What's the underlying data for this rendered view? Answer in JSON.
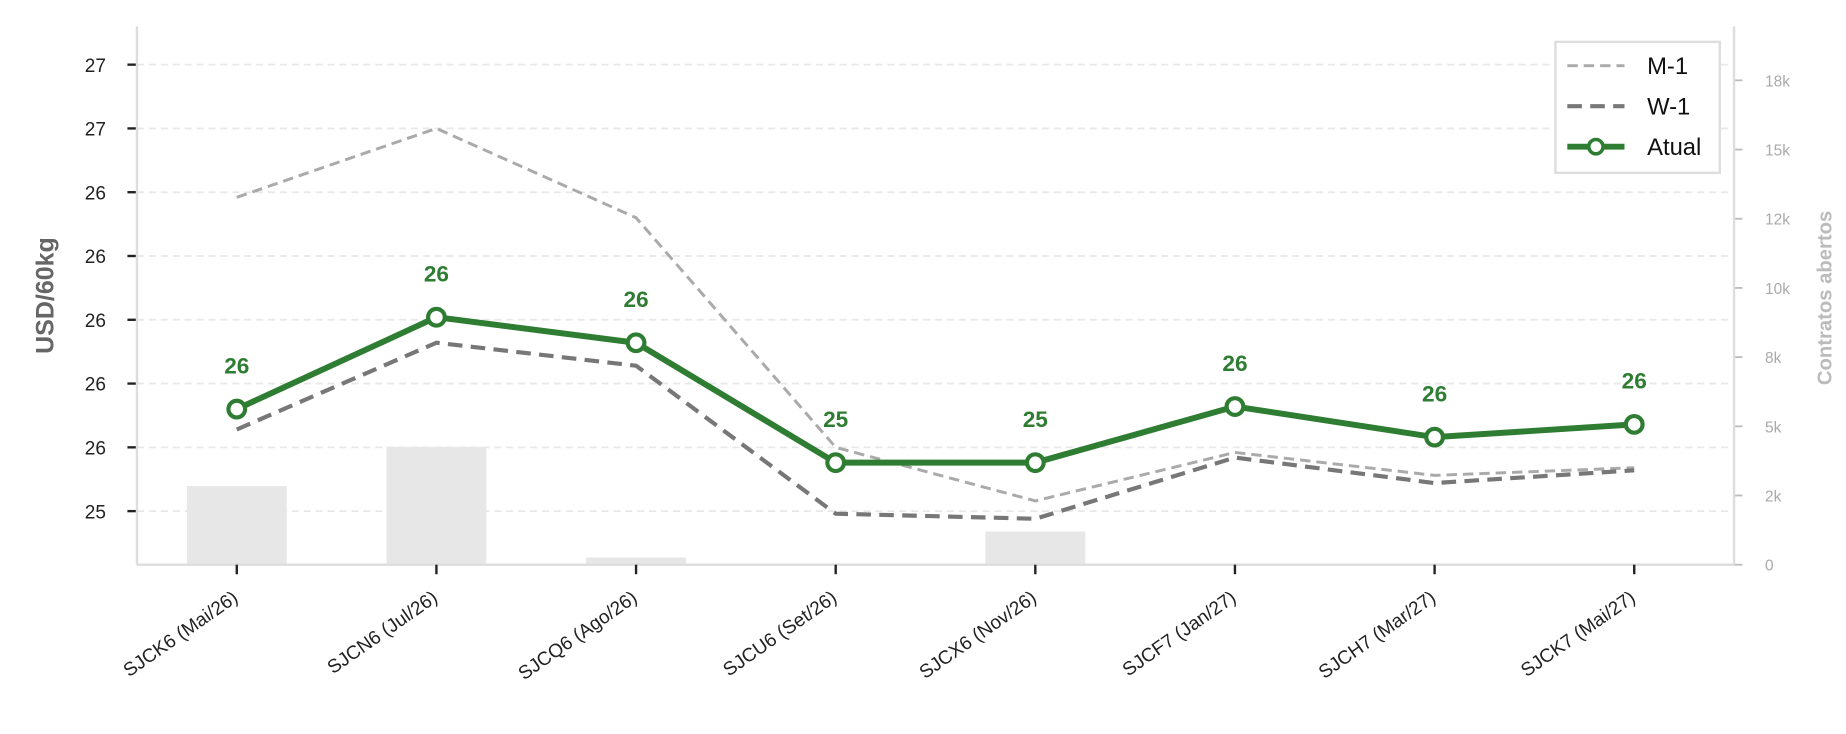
{
  "chart_data": {
    "type": "line",
    "ylabel": "USD/60kg",
    "y2label": "Contratos abertos",
    "categories": [
      "SJCK6 (Mai/26)",
      "SJCN6 (Jul/26)",
      "SJCQ6 (Ago/26)",
      "SJCU6 (Set/26)",
      "SJCX6 (Nov/26)",
      "SJCF7 (Jan/27)",
      "SJCH7 (Mar/27)",
      "SJCK7 (Mai/27)"
    ],
    "ylim": [
      25.04,
      27.15
    ],
    "yticks": [
      {
        "value": 25.25,
        "label": "25"
      },
      {
        "value": 25.5,
        "label": "26"
      },
      {
        "value": 25.75,
        "label": "26"
      },
      {
        "value": 26.0,
        "label": "26"
      },
      {
        "value": 26.25,
        "label": "26"
      },
      {
        "value": 26.5,
        "label": "26"
      },
      {
        "value": 26.75,
        "label": "27"
      },
      {
        "value": 27.0,
        "label": "27"
      }
    ],
    "y2lim": [
      0,
      19450
    ],
    "y2ticks": [
      0,
      {
        "value": 2500,
        "label": "2k"
      },
      {
        "value": 5000,
        "label": "5k"
      },
      {
        "value": 7500,
        "label": "8k"
      },
      {
        "value": 10000,
        "label": "10k"
      },
      {
        "value": 12500,
        "label": "12k"
      },
      {
        "value": 15000,
        "label": "15k"
      },
      {
        "value": 17500,
        "label": "18k"
      }
    ],
    "grid": true,
    "legend": "upper right",
    "bars": {
      "axis": "y2",
      "color": "#e6e7e6",
      "values": [
        2840,
        4260,
        260,
        40,
        1200,
        0,
        0,
        0
      ]
    },
    "series": [
      {
        "name": "M-1",
        "color": "#aaaaaa",
        "style": "dashed",
        "width": 2.5,
        "values": [
          26.48,
          26.75,
          26.4,
          25.5,
          25.29,
          25.48,
          25.39,
          25.42
        ]
      },
      {
        "name": "W-1",
        "color": "#777777",
        "style": "dashed",
        "width": 3.5,
        "values": [
          25.57,
          25.91,
          25.82,
          25.24,
          25.22,
          25.46,
          25.36,
          25.41
        ]
      },
      {
        "name": "Atual",
        "color": "#2e7d32",
        "style": "solid",
        "width": 5,
        "markers": true,
        "values": [
          25.65,
          26.01,
          25.91,
          25.44,
          25.44,
          25.66,
          25.54,
          25.59
        ],
        "value_labels": [
          "26",
          "26",
          "26",
          "25",
          "25",
          "26",
          "26",
          "26"
        ]
      }
    ]
  }
}
